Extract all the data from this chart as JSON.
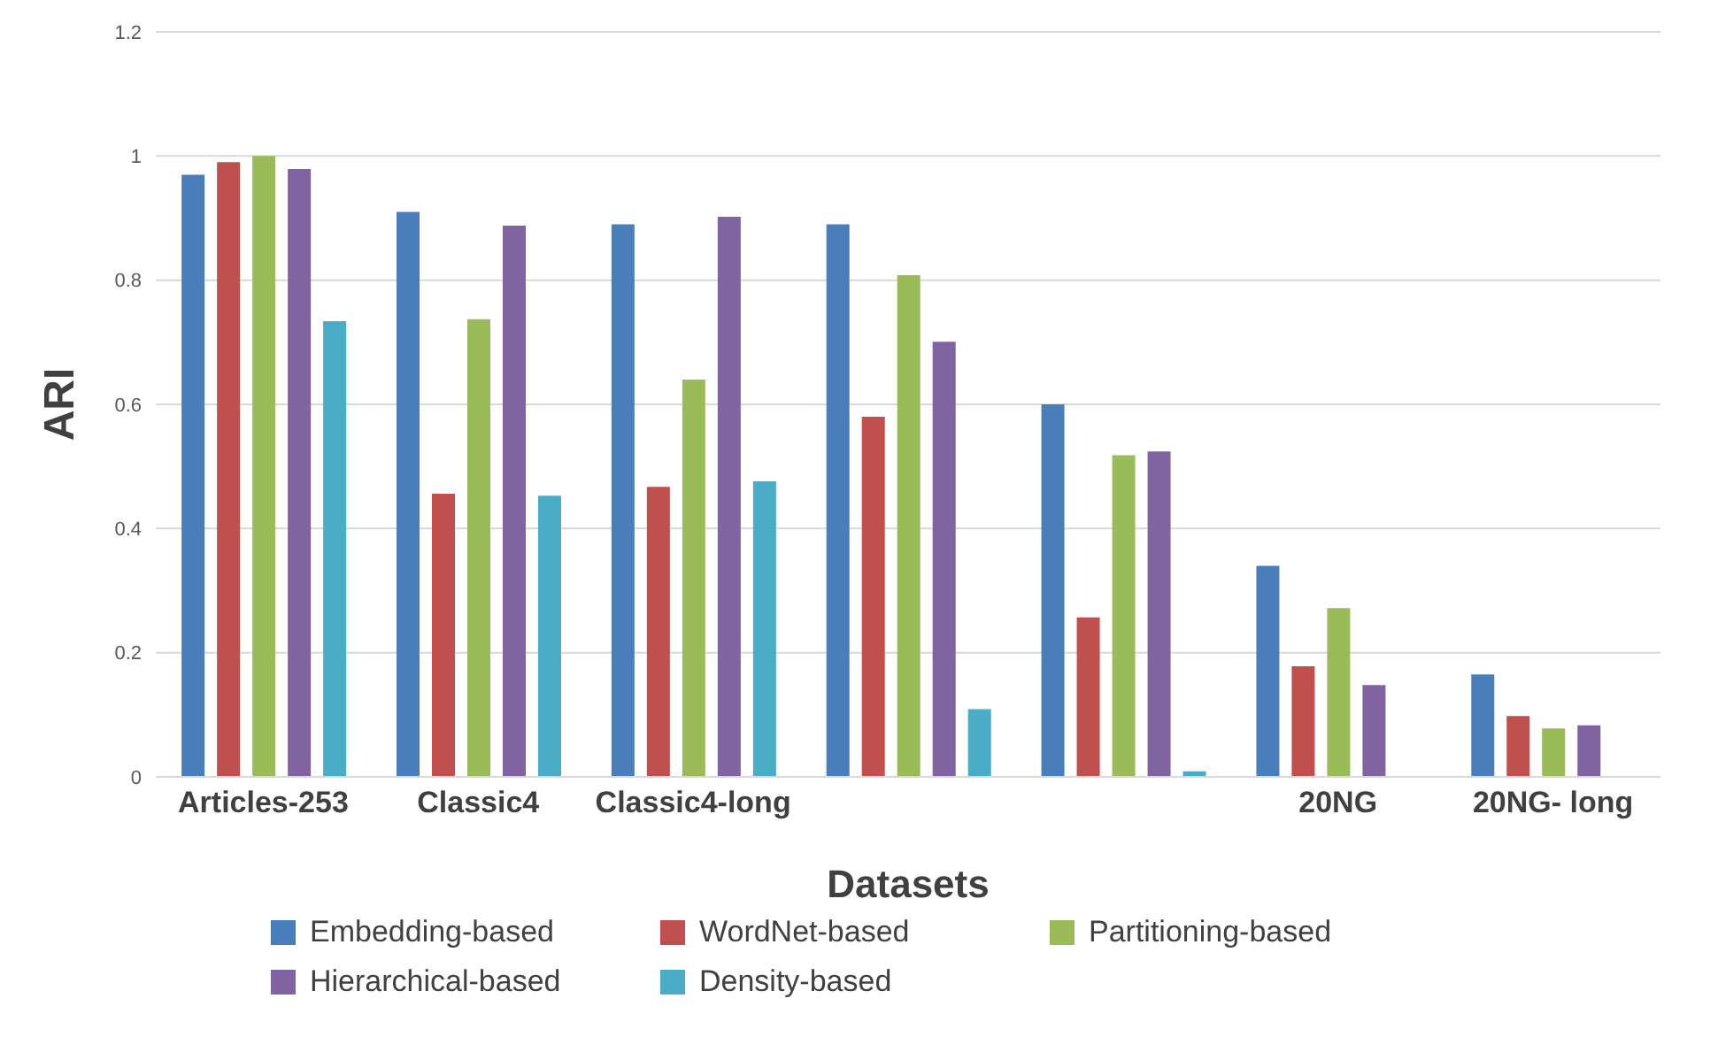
{
  "chart_data": {
    "type": "bar",
    "xlabel": "Datasets",
    "ylabel": "ARI",
    "categories": [
      "Articles-253",
      "Classic4",
      "Classic4-long",
      null,
      null,
      "20NG",
      "20NG- long"
    ],
    "series": [
      {
        "name": "Embedding-based",
        "color": "#4a7ebb",
        "values": [
          0.97,
          0.91,
          0.89,
          0.89,
          0.6,
          0.34,
          0.165
        ]
      },
      {
        "name": "WordNet-based",
        "color": "#c0504d",
        "values": [
          0.99,
          0.456,
          0.467,
          0.58,
          0.257,
          0.178,
          0.098
        ]
      },
      {
        "name": "Partitioning-based",
        "color": "#9bbb59",
        "values": [
          1.0,
          0.737,
          0.64,
          0.808,
          0.518,
          0.272,
          0.078
        ]
      },
      {
        "name": "Hierarchical-based",
        "color": "#8064a2",
        "values": [
          0.979,
          0.888,
          0.902,
          0.701,
          0.524,
          0.148,
          0.083
        ]
      },
      {
        "name": "Density-based",
        "color": "#4bacc6",
        "values": [
          0.734,
          0.453,
          0.476,
          0.109,
          0.009,
          null,
          null
        ]
      }
    ],
    "ylim": [
      0,
      1.2
    ],
    "yticks": [
      0,
      0.2,
      0.4,
      0.6,
      0.8,
      1,
      1.2
    ],
    "grid": "y",
    "legend": "bottom"
  }
}
